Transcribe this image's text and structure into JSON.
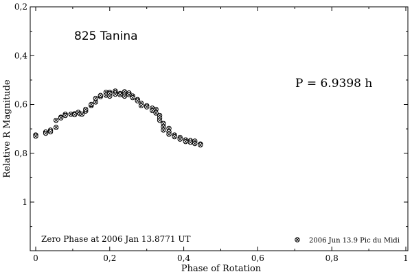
{
  "chart_data": {
    "type": "scatter",
    "title": "825 Tanina",
    "xlabel": "Phase of Rotation",
    "ylabel": "Relative R Magnitude",
    "xlim": [
      0,
      1
    ],
    "ylim": [
      0.2,
      1.2
    ],
    "y_inverted": true,
    "x_ticks": [
      {
        "value": 0,
        "label": "0"
      },
      {
        "value": 0.2,
        "label": "0,2"
      },
      {
        "value": 0.4,
        "label": "0,4"
      },
      {
        "value": 0.6,
        "label": "0,6"
      },
      {
        "value": 0.8,
        "label": "0,8"
      },
      {
        "value": 1,
        "label": "1"
      }
    ],
    "y_ticks": [
      {
        "value": 0.2,
        "label": "0,2"
      },
      {
        "value": 0.4,
        "label": "0,4"
      },
      {
        "value": 0.6,
        "label": "0,6"
      },
      {
        "value": 0.8,
        "label": "0,8"
      },
      {
        "value": 1.0,
        "label": "1"
      }
    ],
    "annotations": {
      "period": "P = 6.9398 h",
      "zero_phase": "Zero Phase at 2006 Jan 13.8771 UT"
    },
    "legend": {
      "position": "bottom-right",
      "entries": [
        "2006 Jun 13.9 Pic du Midi"
      ]
    },
    "series": [
      {
        "name": "2006 Jun 13.9 Pic du Midi",
        "marker": "circle-hatched",
        "points": [
          [
            0.0,
            0.725
          ],
          [
            0.0,
            0.73
          ],
          [
            0.027,
            0.713
          ],
          [
            0.027,
            0.718
          ],
          [
            0.04,
            0.705
          ],
          [
            0.04,
            0.712
          ],
          [
            0.055,
            0.694
          ],
          [
            0.055,
            0.665
          ],
          [
            0.068,
            0.652
          ],
          [
            0.068,
            0.655
          ],
          [
            0.08,
            0.64
          ],
          [
            0.08,
            0.645
          ],
          [
            0.095,
            0.64
          ],
          [
            0.105,
            0.638
          ],
          [
            0.105,
            0.642
          ],
          [
            0.115,
            0.632
          ],
          [
            0.12,
            0.638
          ],
          [
            0.125,
            0.64
          ],
          [
            0.135,
            0.627
          ],
          [
            0.135,
            0.62
          ],
          [
            0.15,
            0.605
          ],
          [
            0.15,
            0.6
          ],
          [
            0.162,
            0.59
          ],
          [
            0.162,
            0.575
          ],
          [
            0.175,
            0.568
          ],
          [
            0.175,
            0.563
          ],
          [
            0.19,
            0.55
          ],
          [
            0.19,
            0.562
          ],
          [
            0.2,
            0.55
          ],
          [
            0.2,
            0.555
          ],
          [
            0.2,
            0.566
          ],
          [
            0.215,
            0.545
          ],
          [
            0.215,
            0.553
          ],
          [
            0.215,
            0.558
          ],
          [
            0.228,
            0.555
          ],
          [
            0.228,
            0.56
          ],
          [
            0.24,
            0.548
          ],
          [
            0.24,
            0.558
          ],
          [
            0.24,
            0.566
          ],
          [
            0.252,
            0.553
          ],
          [
            0.252,
            0.56
          ],
          [
            0.262,
            0.565
          ],
          [
            0.262,
            0.572
          ],
          [
            0.275,
            0.58
          ],
          [
            0.275,
            0.585
          ],
          [
            0.285,
            0.595
          ],
          [
            0.285,
            0.605
          ],
          [
            0.3,
            0.605
          ],
          [
            0.3,
            0.61
          ],
          [
            0.315,
            0.615
          ],
          [
            0.315,
            0.625
          ],
          [
            0.325,
            0.62
          ],
          [
            0.325,
            0.635
          ],
          [
            0.335,
            0.645
          ],
          [
            0.335,
            0.655
          ],
          [
            0.335,
            0.665
          ],
          [
            0.345,
            0.678
          ],
          [
            0.345,
            0.692
          ],
          [
            0.345,
            0.705
          ],
          [
            0.36,
            0.698
          ],
          [
            0.36,
            0.712
          ],
          [
            0.36,
            0.722
          ],
          [
            0.375,
            0.725
          ],
          [
            0.375,
            0.732
          ],
          [
            0.39,
            0.735
          ],
          [
            0.39,
            0.742
          ],
          [
            0.405,
            0.745
          ],
          [
            0.405,
            0.752
          ],
          [
            0.418,
            0.748
          ],
          [
            0.418,
            0.755
          ],
          [
            0.43,
            0.75
          ],
          [
            0.43,
            0.76
          ],
          [
            0.445,
            0.762
          ],
          [
            0.445,
            0.766
          ]
        ]
      }
    ]
  }
}
